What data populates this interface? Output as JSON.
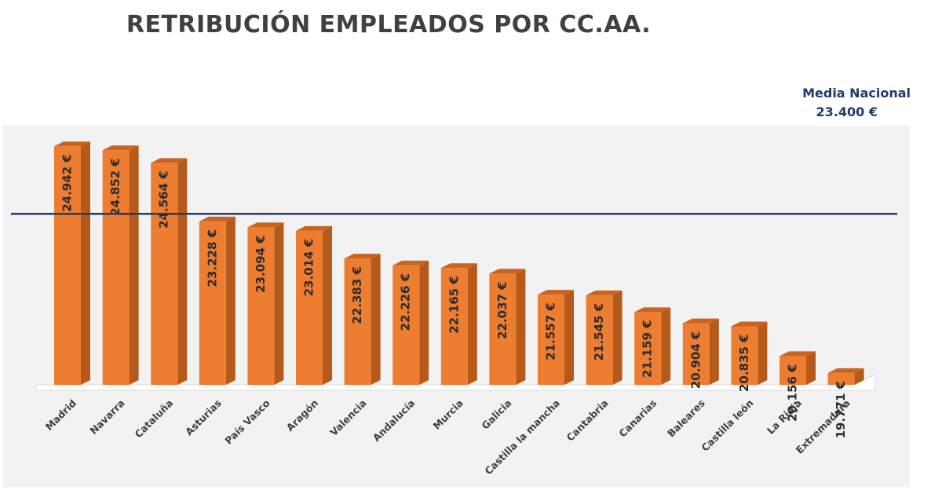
{
  "chart_data": {
    "type": "bar",
    "title": "RETRIBUCIÓN EMPLEADOS POR CC.AA.",
    "categories": [
      "Madrid",
      "Navarra",
      "Cataluña",
      "Asturias",
      "País Vasco",
      "Aragón",
      "Valencia",
      "Andalucía",
      "Murcia",
      "Galicia",
      "Castilla la mancha",
      "Cantabria",
      "Canarias",
      "Baleares",
      "Castilla león",
      "La Rioja",
      "Extremadura"
    ],
    "values": [
      24942,
      24852,
      24564,
      23228,
      23094,
      23014,
      22383,
      22226,
      22165,
      22037,
      21557,
      21545,
      21159,
      20904,
      20835,
      20156,
      19771
    ],
    "value_labels": [
      "24.942 €",
      "24.852 €",
      "24.564 €",
      "23.228 €",
      "23.094 €",
      "23.014 €",
      "22.383 €",
      "22.226 €",
      "22.165 €",
      "22.037 €",
      "21.557 €",
      "21.545 €",
      "21.159 €",
      "20.904 €",
      "20.835 €",
      "20.156 €",
      "19.771 €"
    ],
    "reference_line": {
      "label": "Media Nacional",
      "value": 23400,
      "value_label": "23.400 €"
    },
    "ylim": [
      0,
      26000
    ],
    "grid": false,
    "legend": "none",
    "colors": {
      "bar_front": "#ed7d31",
      "bar_side": "#b65a1b",
      "bar_top": "#c9631f",
      "reference_line": "#1f3a6e",
      "plot_background": "#f2f2f2"
    }
  }
}
